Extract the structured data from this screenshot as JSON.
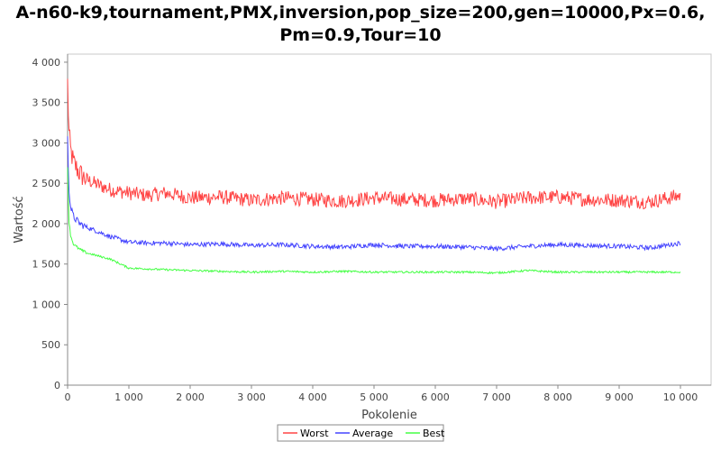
{
  "title": {
    "line1": "A-n60-k9,tournament,PMX,inversion,pop_size=200,gen=10000,Px=0.6,",
    "line2": "Pm=0.9,Tour=10"
  },
  "chart_data": {
    "type": "line",
    "xlabel": "Pokolenie",
    "ylabel": "Wartość",
    "xlim": [
      0,
      10500
    ],
    "ylim": [
      0,
      4100
    ],
    "xticks": [
      0,
      1000,
      2000,
      3000,
      4000,
      5000,
      6000,
      7000,
      8000,
      9000,
      10000
    ],
    "xtick_labels": [
      "0",
      "1 000",
      "2 000",
      "3 000",
      "4 000",
      "5 000",
      "6 000",
      "7 000",
      "8 000",
      "9 000",
      "10 000"
    ],
    "yticks": [
      0,
      500,
      1000,
      1500,
      2000,
      2500,
      3000,
      3500,
      4000
    ],
    "ytick_labels": [
      "0",
      "500",
      "1 000",
      "1 500",
      "2 000",
      "2 500",
      "3 000",
      "3 500",
      "4 000"
    ],
    "grid": false,
    "legend_position": "bottom",
    "series": [
      {
        "name": "Worst",
        "color": "#ff4444",
        "x": [
          0,
          20,
          50,
          100,
          200,
          300,
          500,
          700,
          1000,
          1300,
          1600,
          2000,
          2500,
          3000,
          3500,
          4000,
          4500,
          5000,
          5500,
          6000,
          6500,
          7000,
          7500,
          8000,
          8500,
          9000,
          9500,
          10000
        ],
        "y": [
          3750,
          3150,
          2900,
          2750,
          2620,
          2550,
          2480,
          2420,
          2380,
          2350,
          2380,
          2320,
          2330,
          2290,
          2320,
          2300,
          2280,
          2320,
          2300,
          2290,
          2310,
          2270,
          2320,
          2330,
          2300,
          2290,
          2270,
          2350
        ]
      },
      {
        "name": "Average",
        "color": "#4444ff",
        "x": [
          0,
          20,
          50,
          100,
          200,
          300,
          500,
          700,
          1000,
          1300,
          1600,
          2000,
          2500,
          3000,
          3500,
          4000,
          4500,
          5000,
          5500,
          6000,
          6500,
          7000,
          7500,
          8000,
          8500,
          9000,
          9500,
          10000
        ],
        "y": [
          3050,
          2450,
          2200,
          2080,
          2000,
          1960,
          1900,
          1840,
          1770,
          1760,
          1760,
          1740,
          1750,
          1730,
          1740,
          1720,
          1710,
          1740,
          1720,
          1720,
          1710,
          1690,
          1720,
          1740,
          1730,
          1720,
          1700,
          1760
        ]
      },
      {
        "name": "Best",
        "color": "#44ff44",
        "x": [
          0,
          20,
          50,
          100,
          200,
          300,
          500,
          700,
          1000,
          1300,
          1600,
          2000,
          2500,
          3000,
          3500,
          4000,
          4500,
          5000,
          5500,
          6000,
          6500,
          7000,
          7500,
          8000,
          8500,
          9000,
          9500,
          10000
        ],
        "y": [
          2700,
          2050,
          1850,
          1740,
          1680,
          1640,
          1600,
          1560,
          1450,
          1440,
          1430,
          1420,
          1410,
          1400,
          1410,
          1400,
          1410,
          1400,
          1400,
          1400,
          1400,
          1390,
          1420,
          1400,
          1400,
          1400,
          1400,
          1400
        ]
      }
    ]
  }
}
